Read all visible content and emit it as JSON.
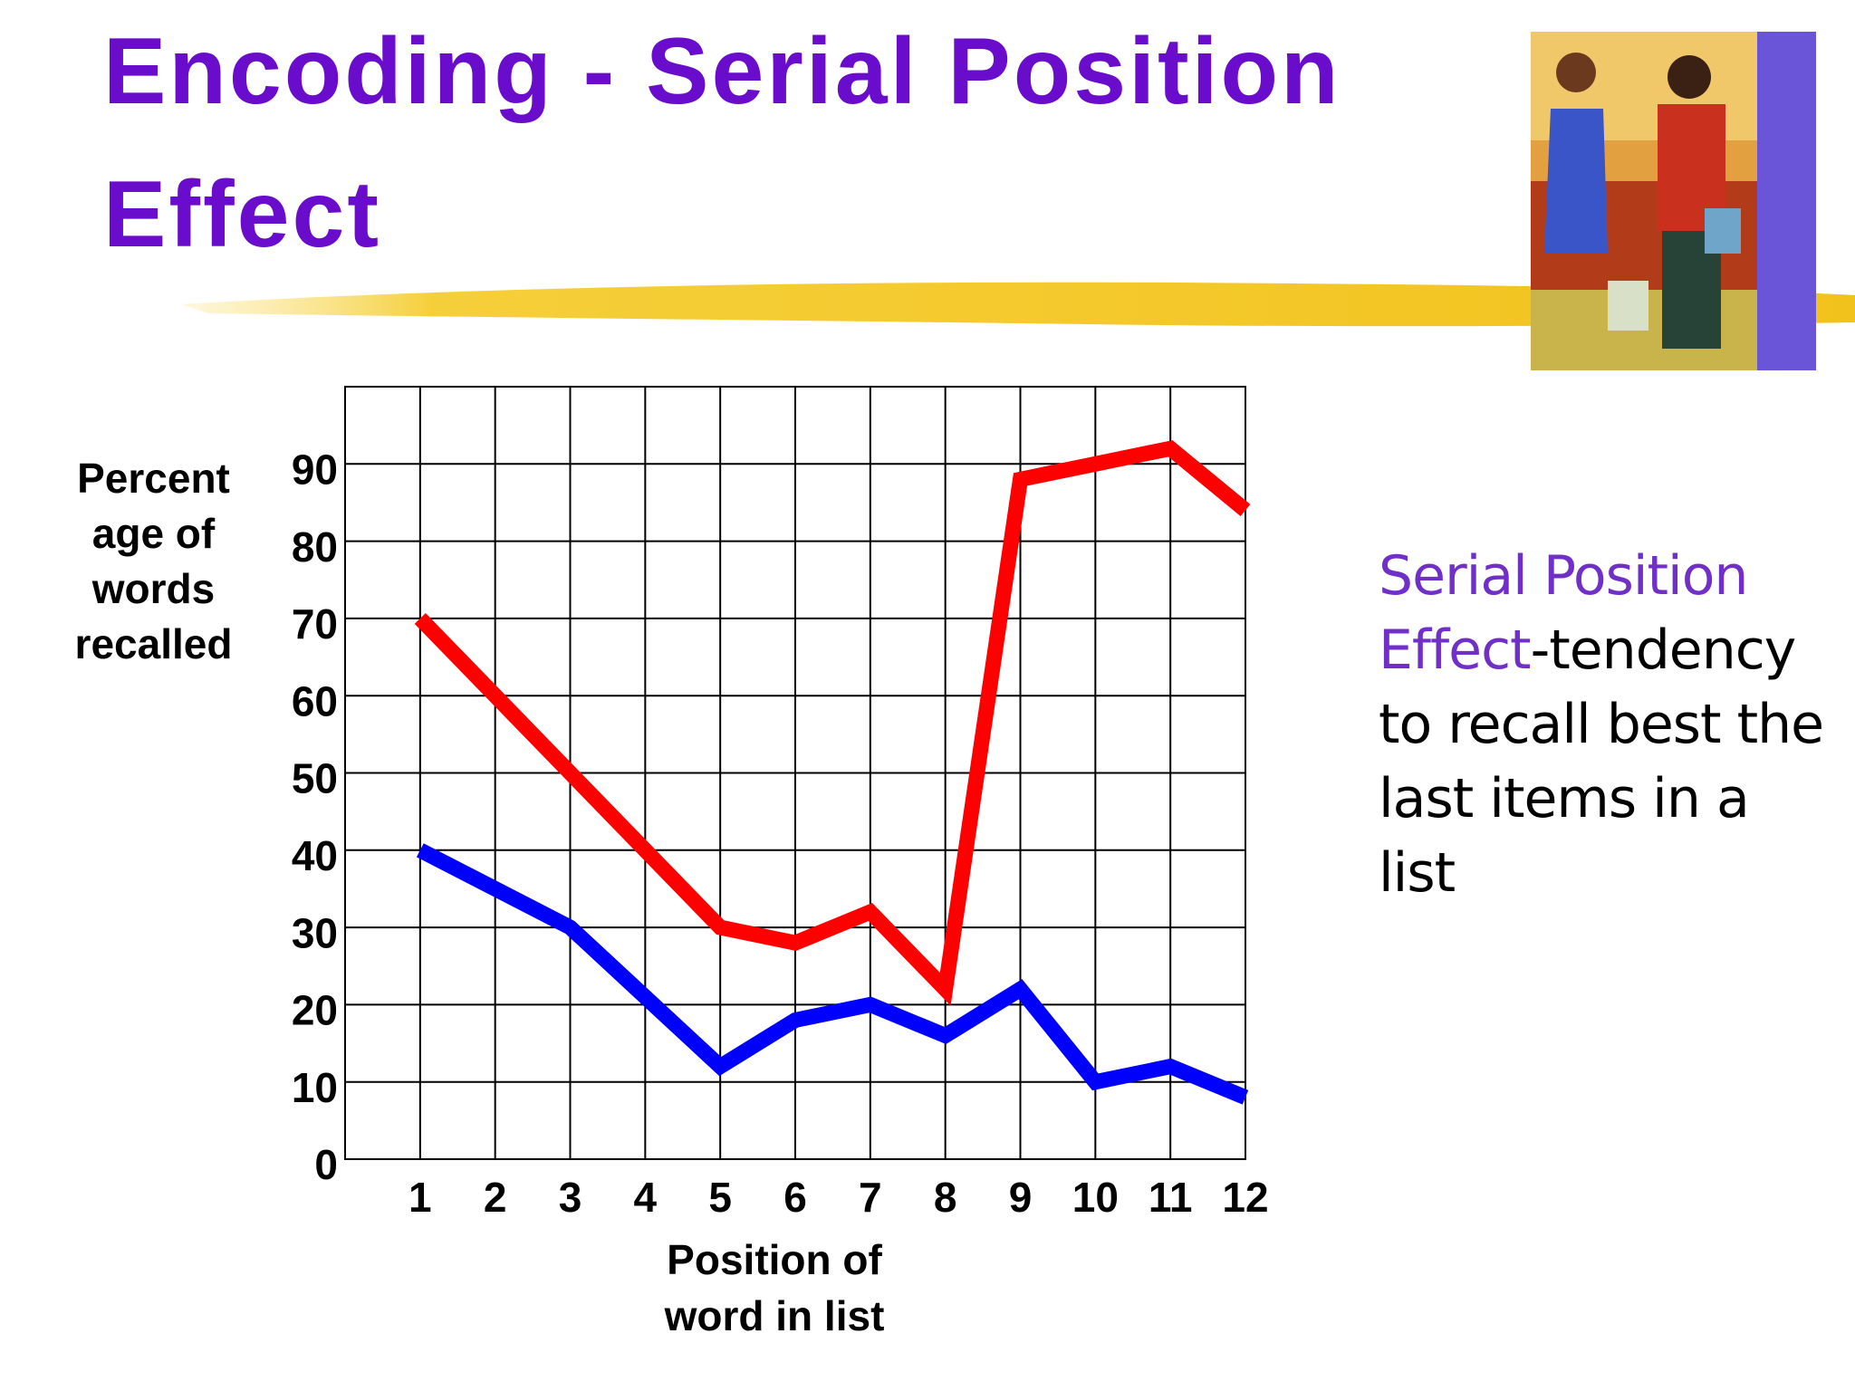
{
  "chart_data": {
    "type": "line",
    "title": "Encoding - Serial Position Effect",
    "x_label": "Position of word in list",
    "y_label": "Percent age of words recalled",
    "x": [
      1,
      2,
      3,
      4,
      5,
      6,
      7,
      8,
      9,
      10,
      11,
      12
    ],
    "series": [
      {
        "color": "#ff0000",
        "values": [
          70,
          60,
          50,
          40,
          30,
          28,
          32,
          22,
          88,
          90,
          92,
          84
        ]
      },
      {
        "color": "#0000ff",
        "values": [
          40,
          35,
          30,
          21,
          12,
          18,
          20,
          16,
          22,
          10,
          12,
          8
        ]
      }
    ],
    "xlim": [
      0,
      12
    ],
    "xticks": [
      1,
      2,
      3,
      4,
      5,
      6,
      7,
      8,
      9,
      10,
      11,
      12
    ],
    "ylim": [
      0,
      100
    ],
    "yticks": [
      0,
      10,
      20,
      30,
      40,
      50,
      60,
      70,
      80,
      90
    ],
    "grid": true
  },
  "definition": {
    "term": "Serial Position Effect",
    "text": "-tendency to recall best the last items in a list"
  }
}
